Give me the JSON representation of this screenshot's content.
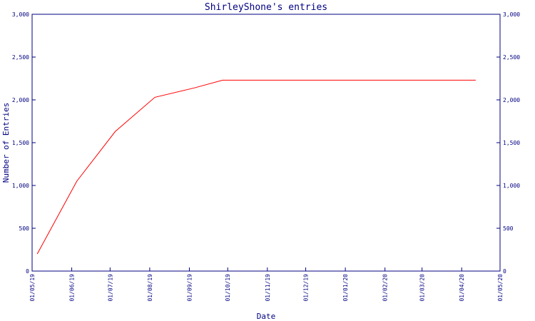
{
  "chart_data": {
    "type": "line",
    "title": "ShirleyShone's entries",
    "xlabel": "Date",
    "ylabel": "Number of Entries",
    "ylim": [
      0,
      3000
    ],
    "y_ticks": [
      0,
      500,
      1000,
      1500,
      2000,
      2500,
      3000
    ],
    "y_tick_labels": [
      "0",
      "500",
      "1,000",
      "1,500",
      "2,000",
      "2,500",
      "3,000"
    ],
    "y_axis_mirrored_right": true,
    "x_ticks": [
      "01/05/19",
      "01/06/19",
      "01/07/19",
      "01/08/19",
      "01/09/19",
      "01/10/19",
      "01/11/19",
      "01/12/19",
      "01/01/20",
      "01/02/20",
      "01/03/20",
      "01/04/20",
      "01/05/20"
    ],
    "xlim": [
      "01/05/19",
      "01/05/20"
    ],
    "grid": false,
    "series": [
      {
        "color": "#ff0000",
        "points": [
          {
            "x": "2019-05-05",
            "y": 200
          },
          {
            "x": "2019-06-05",
            "y": 1050
          },
          {
            "x": "2019-07-05",
            "y": 1630
          },
          {
            "x": "2019-08-05",
            "y": 2030
          },
          {
            "x": "2019-09-05",
            "y": 2140
          },
          {
            "x": "2019-09-27",
            "y": 2230
          },
          {
            "x": "2020-04-12",
            "y": 2230
          }
        ]
      }
    ]
  }
}
